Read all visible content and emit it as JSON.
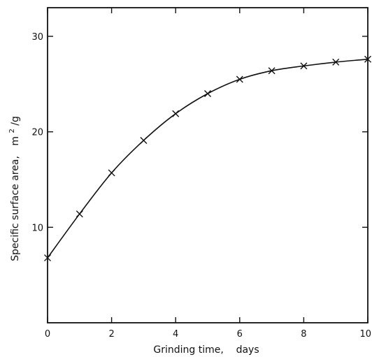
{
  "chart_data": {
    "type": "line",
    "title": "",
    "xlabel": "Grinding time,    days",
    "ylabel": "Specific surface area,",
    "ylabel_unit_main": "m",
    "ylabel_unit_sup": "2",
    "ylabel_unit_tail": "/g",
    "xlim": [
      0,
      10
    ],
    "ylim": [
      0,
      33
    ],
    "x_ticks": [
      0,
      2,
      4,
      6,
      8,
      10
    ],
    "x_tick_labels": [
      "0",
      "2",
      "4",
      "6",
      "8",
      "10"
    ],
    "y_ticks": [
      10,
      20,
      30
    ],
    "y_tick_labels": [
      "10",
      "20",
      "30"
    ],
    "grid": false,
    "series": [
      {
        "marker": "x",
        "x": [
          0,
          1,
          2,
          3,
          4,
          5,
          6,
          7,
          8,
          9,
          10
        ],
        "y": [
          6.8,
          11.4,
          15.7,
          19.1,
          21.9,
          24.0,
          25.5,
          26.4,
          26.9,
          27.3,
          27.6
        ]
      }
    ]
  }
}
